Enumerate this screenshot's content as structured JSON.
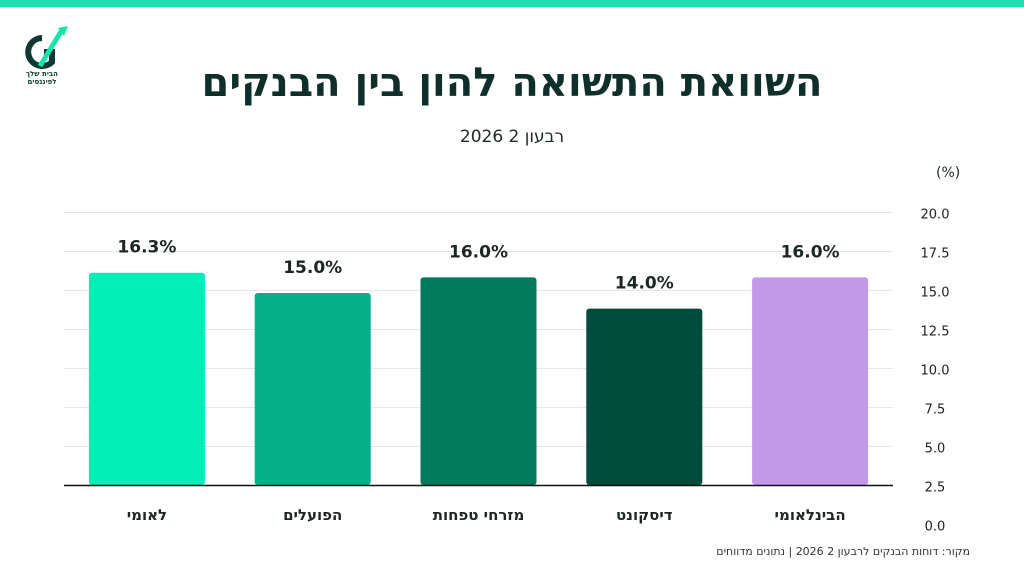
{
  "logo": {
    "text": "הבית שלך לפיננסים"
  },
  "header": {
    "title": "השוואת התשואה להון בין הבנקים",
    "subtitle": "רבעון 2 2026"
  },
  "footer": {
    "source": "מקור: דוחות הבנקים לרבעון 2 2026 | נתונים מדווחים"
  },
  "chart_data": {
    "type": "bar",
    "categories": [
      "לאומי",
      "הפועלים",
      "מזרחי טפחות",
      "דיסקונט",
      "הבינלאומי"
    ],
    "values": [
      16.3,
      15.0,
      16.0,
      14.0,
      16.0
    ],
    "value_labels": [
      "16.3%",
      "15.0%",
      "16.0%",
      "14.0%",
      "16.0%"
    ],
    "colors": [
      "#03efb7",
      "#04b187",
      "#00795d",
      "#004c3a",
      "#c298ea"
    ],
    "unit_label": "(%)",
    "y_ticks": [
      "0.0",
      "2.5",
      "5.0",
      "7.5",
      "10.0",
      "12.5",
      "15.0",
      "17.5",
      "20.0"
    ],
    "ylim": [
      0,
      20
    ],
    "axis_position": "right",
    "grid": true
  }
}
